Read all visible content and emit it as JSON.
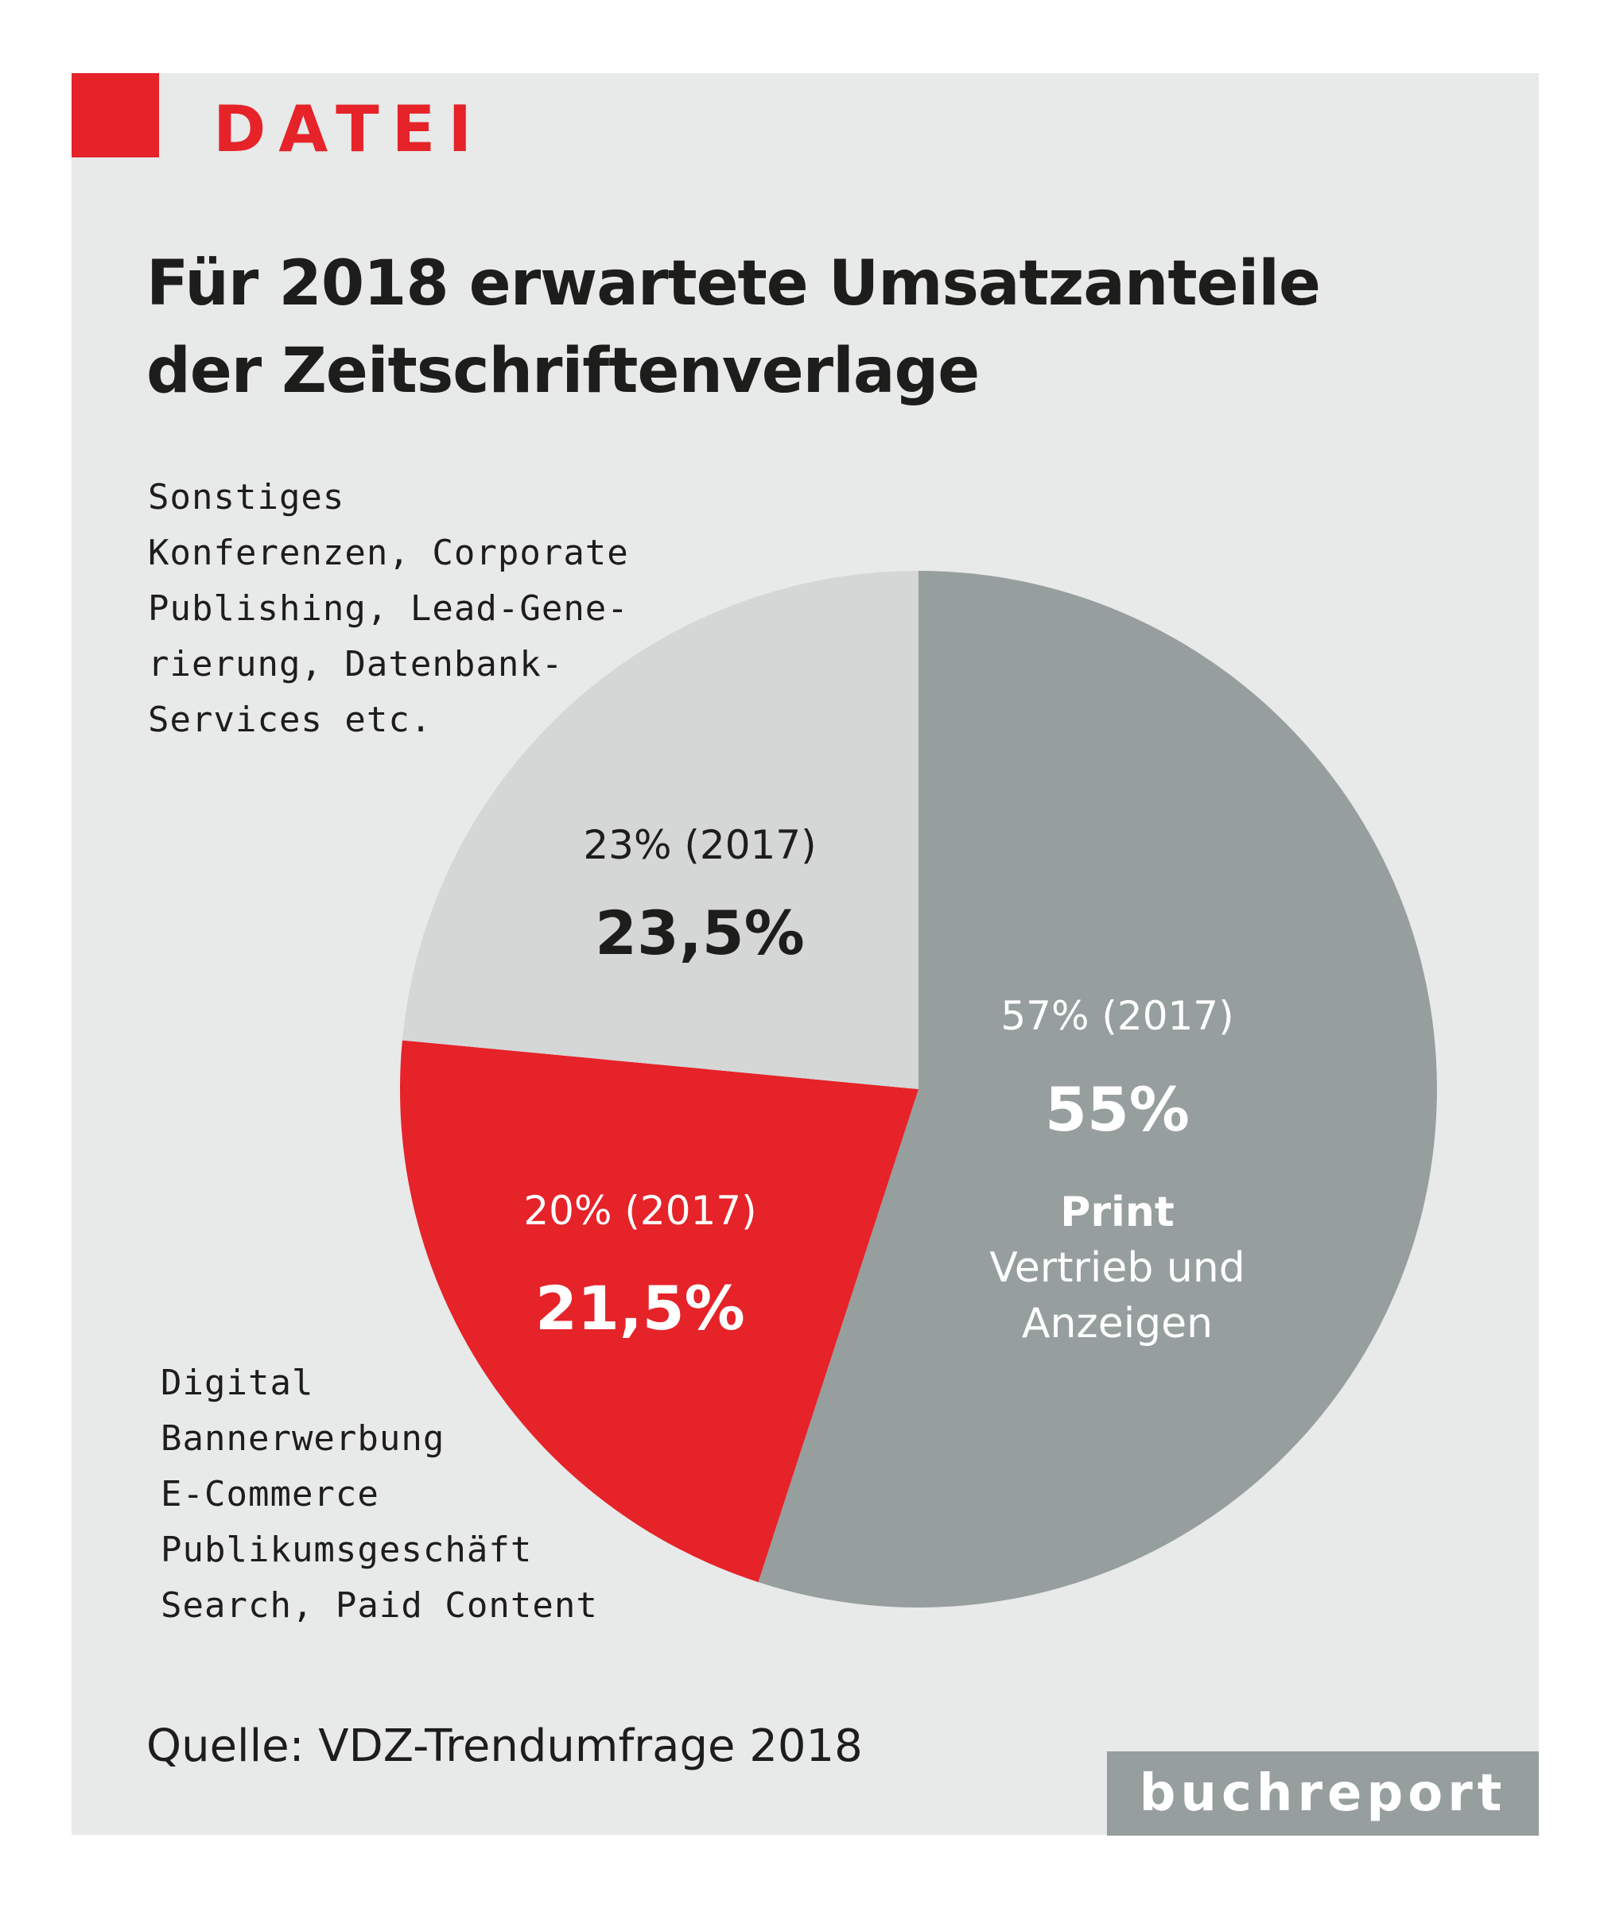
{
  "header": {
    "kicker": "DATEI",
    "title_lines": [
      "Für 2018 erwartete Umsatzanteile",
      "der Zeitschriftenverlage"
    ]
  },
  "chart_data": {
    "type": "pie",
    "title": "Für 2018 erwartete Umsatzanteile der Zeitschriftenverlage",
    "slices": [
      {
        "label": "Print",
        "description_lines": [
          "Print",
          "Vertrieb und",
          "Anzeigen"
        ],
        "value": 55,
        "value_label": "55%",
        "prev_label": "57% (2017)",
        "color": "#969e9e"
      },
      {
        "label": "Digital",
        "description_lines": [
          "Digital",
          "Bannerwerbung",
          "E-Commerce",
          "Publikumsgeschäft",
          "Search, Paid Content"
        ],
        "value": 21.5,
        "value_label": "21,5%",
        "prev_label": "20% (2017)",
        "color": "#e52329"
      },
      {
        "label": "Sonstiges",
        "description_lines": [
          "Sonstiges",
          "Konferenzen, Corporate",
          "Publishing, Lead-Gene-",
          "rierung, Datenbank-",
          "Services etc."
        ],
        "value": 23.5,
        "value_label": "23,5%",
        "prev_label": "23% (2017)",
        "color": "#d5d6d6"
      }
    ]
  },
  "footer": {
    "source": "Quelle: VDZ-Trendumfrage 2018",
    "brand": "buchreport"
  }
}
